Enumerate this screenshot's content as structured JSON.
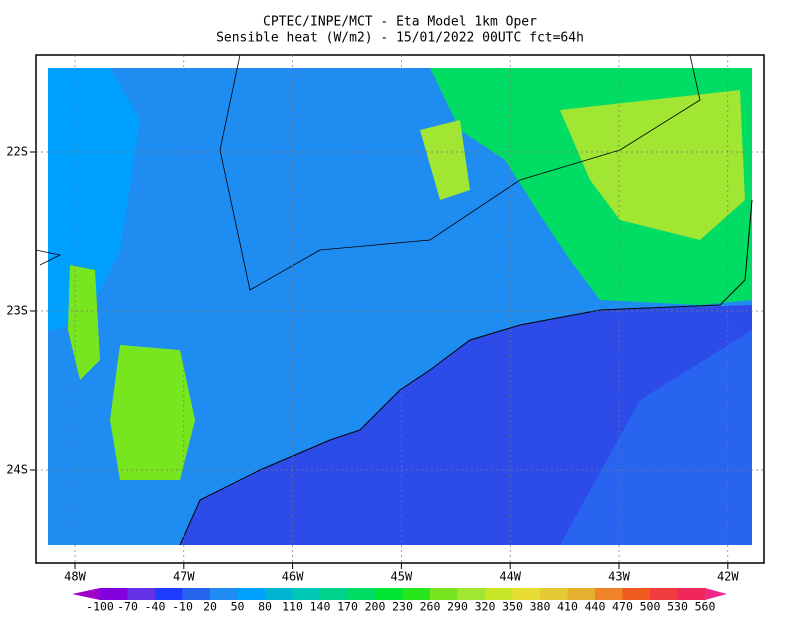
{
  "map": {
    "title_lines": [
      "CPTEC/INPE/MCT -  Eta Model 1km Oper",
      "Sensible heat (W/m2) - 15/01/2022 00UTC fct=64h"
    ],
    "lat_labels": [
      "22S",
      "23S",
      "24S"
    ],
    "lon_labels": [
      "48W",
      "47W",
      "46W",
      "45W",
      "44W",
      "43W",
      "42W"
    ],
    "colorbar": {
      "levels": [
        -100,
        -70,
        -40,
        -10,
        20,
        50,
        80,
        110,
        140,
        170,
        200,
        230,
        260,
        290,
        320,
        350,
        380,
        410,
        440,
        470,
        500,
        530,
        560
      ],
      "colors": [
        "#a000c8",
        "#8200dc",
        "#6432e6",
        "#1e3cff",
        "#2864f0",
        "#1e8cf0",
        "#00a0ff",
        "#00b4d2",
        "#00c8b4",
        "#00d28c",
        "#00dc64",
        "#00e632",
        "#28e61e",
        "#78e61e",
        "#a0e632",
        "#c8e628",
        "#e6dc32",
        "#e6c832",
        "#e6af2d",
        "#f08228",
        "#f05a1e",
        "#f03c3c",
        "#f0285a",
        "#f02888"
      ]
    }
  }
}
